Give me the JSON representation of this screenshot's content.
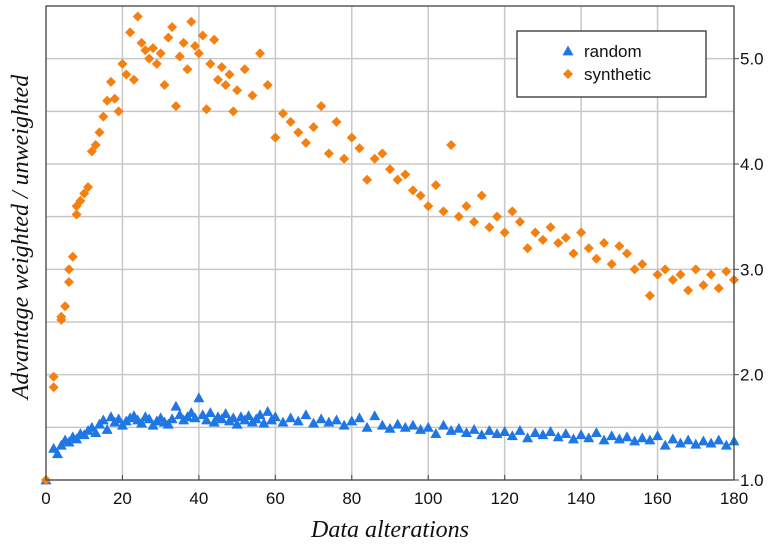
{
  "chart_data": {
    "type": "scatter",
    "xlabel": "Data alterations",
    "ylabel": "Advantage  weighted / unweighted",
    "xlim": [
      0,
      180
    ],
    "ylim": [
      1.0,
      5.5
    ],
    "x_ticks": [
      0,
      20,
      40,
      60,
      80,
      100,
      120,
      140,
      160,
      180
    ],
    "y_ticks": [
      1.0,
      2.0,
      3.0,
      4.0,
      5.0
    ],
    "y_ticks_labeled": [
      "1.0",
      "2.0",
      "3.0",
      "4.0",
      "5.0"
    ],
    "x_ticks_labeled": [
      "0",
      "20",
      "40",
      "60",
      "80",
      "100",
      "120",
      "140",
      "160",
      "180"
    ],
    "y_axis_side": "right",
    "grid": true,
    "legend_position": "top-right",
    "series": [
      {
        "name": "random",
        "marker": "triangle",
        "color": "#1f77e6",
        "points": [
          [
            0,
            1.0
          ],
          [
            2,
            1.3
          ],
          [
            3,
            1.25
          ],
          [
            4,
            1.33
          ],
          [
            5,
            1.38
          ],
          [
            6,
            1.36
          ],
          [
            7,
            1.41
          ],
          [
            8,
            1.39
          ],
          [
            9,
            1.44
          ],
          [
            10,
            1.43
          ],
          [
            11,
            1.47
          ],
          [
            12,
            1.5
          ],
          [
            13,
            1.45
          ],
          [
            14,
            1.53
          ],
          [
            15,
            1.57
          ],
          [
            16,
            1.48
          ],
          [
            17,
            1.6
          ],
          [
            18,
            1.55
          ],
          [
            19,
            1.58
          ],
          [
            20,
            1.52
          ],
          [
            21,
            1.56
          ],
          [
            22,
            1.59
          ],
          [
            23,
            1.61
          ],
          [
            24,
            1.57
          ],
          [
            25,
            1.54
          ],
          [
            26,
            1.6
          ],
          [
            27,
            1.58
          ],
          [
            28,
            1.52
          ],
          [
            29,
            1.56
          ],
          [
            30,
            1.59
          ],
          [
            31,
            1.55
          ],
          [
            32,
            1.53
          ],
          [
            33,
            1.58
          ],
          [
            34,
            1.7
          ],
          [
            35,
            1.62
          ],
          [
            36,
            1.57
          ],
          [
            37,
            1.6
          ],
          [
            38,
            1.64
          ],
          [
            39,
            1.59
          ],
          [
            40,
            1.78
          ],
          [
            41,
            1.62
          ],
          [
            42,
            1.57
          ],
          [
            43,
            1.64
          ],
          [
            44,
            1.55
          ],
          [
            45,
            1.6
          ],
          [
            46,
            1.58
          ],
          [
            47,
            1.63
          ],
          [
            48,
            1.56
          ],
          [
            49,
            1.59
          ],
          [
            50,
            1.53
          ],
          [
            51,
            1.6
          ],
          [
            52,
            1.57
          ],
          [
            53,
            1.61
          ],
          [
            54,
            1.55
          ],
          [
            55,
            1.58
          ],
          [
            56,
            1.62
          ],
          [
            57,
            1.54
          ],
          [
            58,
            1.65
          ],
          [
            59,
            1.57
          ],
          [
            60,
            1.6
          ],
          [
            62,
            1.55
          ],
          [
            64,
            1.59
          ],
          [
            66,
            1.56
          ],
          [
            68,
            1.62
          ],
          [
            70,
            1.54
          ],
          [
            72,
            1.58
          ],
          [
            74,
            1.55
          ],
          [
            76,
            1.57
          ],
          [
            78,
            1.52
          ],
          [
            80,
            1.56
          ],
          [
            82,
            1.59
          ],
          [
            84,
            1.5
          ],
          [
            86,
            1.61
          ],
          [
            88,
            1.52
          ],
          [
            90,
            1.49
          ],
          [
            92,
            1.53
          ],
          [
            94,
            1.5
          ],
          [
            96,
            1.52
          ],
          [
            98,
            1.48
          ],
          [
            100,
            1.5
          ],
          [
            102,
            1.44
          ],
          [
            104,
            1.52
          ],
          [
            106,
            1.47
          ],
          [
            108,
            1.49
          ],
          [
            110,
            1.45
          ],
          [
            112,
            1.48
          ],
          [
            114,
            1.43
          ],
          [
            116,
            1.47
          ],
          [
            118,
            1.44
          ],
          [
            120,
            1.46
          ],
          [
            122,
            1.42
          ],
          [
            124,
            1.47
          ],
          [
            126,
            1.4
          ],
          [
            128,
            1.45
          ],
          [
            130,
            1.43
          ],
          [
            132,
            1.46
          ],
          [
            134,
            1.41
          ],
          [
            136,
            1.44
          ],
          [
            138,
            1.39
          ],
          [
            140,
            1.43
          ],
          [
            142,
            1.4
          ],
          [
            144,
            1.45
          ],
          [
            146,
            1.38
          ],
          [
            148,
            1.42
          ],
          [
            150,
            1.39
          ],
          [
            152,
            1.41
          ],
          [
            154,
            1.37
          ],
          [
            156,
            1.4
          ],
          [
            158,
            1.38
          ],
          [
            160,
            1.42
          ],
          [
            162,
            1.33
          ],
          [
            164,
            1.39
          ],
          [
            166,
            1.35
          ],
          [
            168,
            1.38
          ],
          [
            170,
            1.34
          ],
          [
            172,
            1.37
          ],
          [
            174,
            1.35
          ],
          [
            176,
            1.38
          ],
          [
            178,
            1.33
          ],
          [
            180,
            1.37
          ]
        ]
      },
      {
        "name": "synthetic",
        "marker": "diamond",
        "color": "#f57f0f",
        "points": [
          [
            0,
            1.0
          ],
          [
            2,
            1.88
          ],
          [
            2,
            1.98
          ],
          [
            4,
            2.52
          ],
          [
            4,
            2.55
          ],
          [
            5,
            2.65
          ],
          [
            6,
            2.88
          ],
          [
            6,
            3.0
          ],
          [
            7,
            3.12
          ],
          [
            8,
            3.52
          ],
          [
            8,
            3.6
          ],
          [
            9,
            3.65
          ],
          [
            10,
            3.72
          ],
          [
            11,
            3.78
          ],
          [
            12,
            4.12
          ],
          [
            13,
            4.18
          ],
          [
            14,
            4.3
          ],
          [
            15,
            4.45
          ],
          [
            16,
            4.6
          ],
          [
            17,
            4.78
          ],
          [
            18,
            4.62
          ],
          [
            19,
            4.5
          ],
          [
            20,
            4.95
          ],
          [
            21,
            4.85
          ],
          [
            22,
            5.25
          ],
          [
            23,
            4.8
          ],
          [
            24,
            5.4
          ],
          [
            25,
            5.15
          ],
          [
            26,
            5.08
          ],
          [
            27,
            5.0
          ],
          [
            28,
            5.1
          ],
          [
            29,
            4.95
          ],
          [
            30,
            5.05
          ],
          [
            31,
            4.75
          ],
          [
            32,
            5.2
          ],
          [
            33,
            5.3
          ],
          [
            34,
            4.55
          ],
          [
            35,
            5.02
          ],
          [
            36,
            5.15
          ],
          [
            37,
            4.9
          ],
          [
            38,
            5.35
          ],
          [
            39,
            5.12
          ],
          [
            40,
            5.05
          ],
          [
            41,
            5.22
          ],
          [
            42,
            4.52
          ],
          [
            43,
            4.95
          ],
          [
            44,
            5.18
          ],
          [
            45,
            4.8
          ],
          [
            46,
            4.92
          ],
          [
            47,
            4.75
          ],
          [
            48,
            4.85
          ],
          [
            49,
            4.5
          ],
          [
            50,
            4.7
          ],
          [
            52,
            4.9
          ],
          [
            54,
            4.65
          ],
          [
            56,
            5.05
          ],
          [
            58,
            4.75
          ],
          [
            60,
            4.25
          ],
          [
            62,
            4.48
          ],
          [
            64,
            4.4
          ],
          [
            66,
            4.3
          ],
          [
            68,
            4.2
          ],
          [
            70,
            4.35
          ],
          [
            72,
            4.55
          ],
          [
            74,
            4.1
          ],
          [
            76,
            4.4
          ],
          [
            78,
            4.05
          ],
          [
            80,
            4.25
          ],
          [
            82,
            4.15
          ],
          [
            84,
            3.85
          ],
          [
            86,
            4.05
          ],
          [
            88,
            4.1
          ],
          [
            90,
            3.95
          ],
          [
            92,
            3.85
          ],
          [
            94,
            3.9
          ],
          [
            96,
            3.75
          ],
          [
            98,
            3.7
          ],
          [
            100,
            3.6
          ],
          [
            102,
            3.8
          ],
          [
            104,
            3.55
          ],
          [
            106,
            4.18
          ],
          [
            108,
            3.5
          ],
          [
            110,
            3.6
          ],
          [
            112,
            3.45
          ],
          [
            114,
            3.7
          ],
          [
            116,
            3.4
          ],
          [
            118,
            3.5
          ],
          [
            120,
            3.35
          ],
          [
            122,
            3.55
          ],
          [
            124,
            3.45
          ],
          [
            126,
            3.2
          ],
          [
            128,
            3.35
          ],
          [
            130,
            3.28
          ],
          [
            132,
            3.4
          ],
          [
            134,
            3.25
          ],
          [
            136,
            3.3
          ],
          [
            138,
            3.15
          ],
          [
            140,
            3.35
          ],
          [
            142,
            3.2
          ],
          [
            144,
            3.1
          ],
          [
            146,
            3.25
          ],
          [
            148,
            3.05
          ],
          [
            150,
            3.22
          ],
          [
            152,
            3.15
          ],
          [
            154,
            3.0
          ],
          [
            156,
            3.05
          ],
          [
            158,
            2.75
          ],
          [
            160,
            2.95
          ],
          [
            162,
            3.0
          ],
          [
            164,
            2.9
          ],
          [
            166,
            2.95
          ],
          [
            168,
            2.8
          ],
          [
            170,
            3.0
          ],
          [
            172,
            2.85
          ],
          [
            174,
            2.95
          ],
          [
            176,
            2.82
          ],
          [
            178,
            2.98
          ],
          [
            180,
            2.9
          ]
        ]
      }
    ]
  }
}
